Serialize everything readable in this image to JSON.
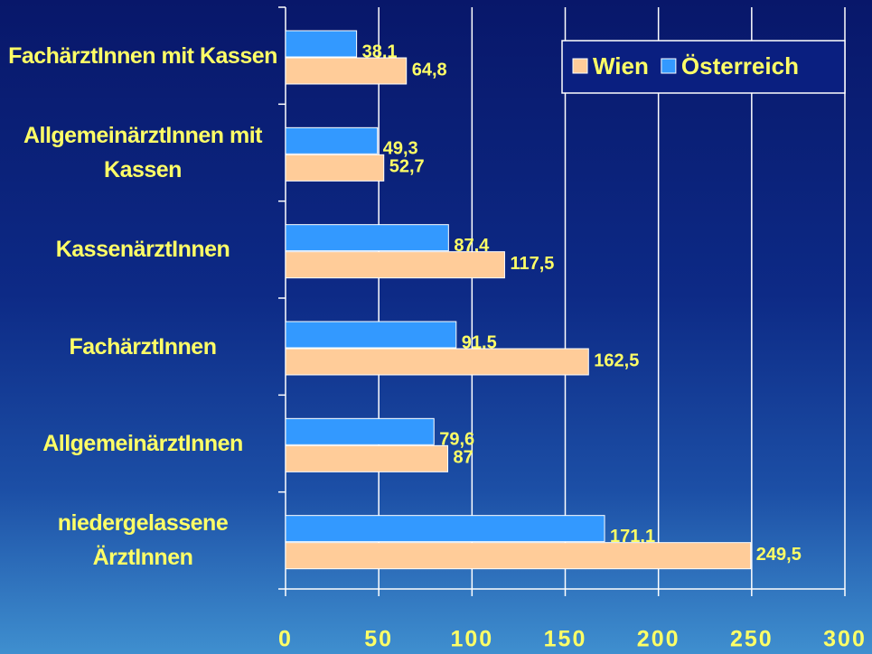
{
  "chart_data": {
    "type": "hbar",
    "categories": [
      "FachärztInnen mit Kassen",
      "AllgemeinärztInnen mit Kassen",
      "KassenärztInnen",
      "FachärztInnen",
      "AllgemeinärztInnen",
      "niedergelassene ÄrztInnen"
    ],
    "series": [
      {
        "name": "Wien",
        "color": "#ffcc99",
        "values": [
          64.8,
          52.7,
          117.5,
          162.5,
          87,
          249.5
        ],
        "value_labels": [
          "64,8",
          "52,7",
          "117,5",
          "162,5",
          "87",
          "249,5"
        ]
      },
      {
        "name": "Österreich",
        "color": "#3399ff",
        "values": [
          38.1,
          49.3,
          87.4,
          91.5,
          79.6,
          171.1
        ],
        "value_labels": [
          "38,1",
          "49,3",
          "87,4",
          "91,5",
          "79,6",
          "171,1"
        ]
      }
    ],
    "xlim": [
      0,
      300
    ],
    "xticks": [
      0,
      50,
      100,
      150,
      200,
      250,
      300
    ],
    "grid": true,
    "legend": "top-right"
  }
}
